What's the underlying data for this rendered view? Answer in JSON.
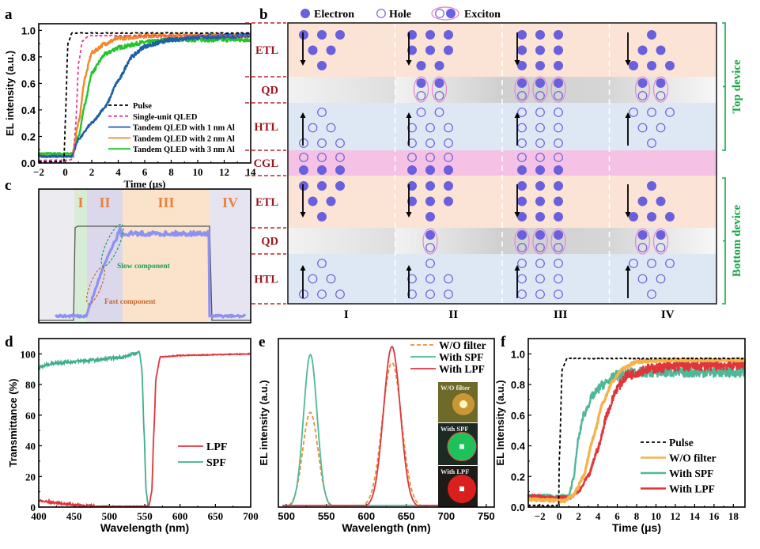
{
  "panels": {
    "a": {
      "letter": "a"
    },
    "b": {
      "letter": "b"
    },
    "c": {
      "letter": "c"
    },
    "d": {
      "letter": "d"
    },
    "e": {
      "letter": "e"
    },
    "f": {
      "letter": "f"
    }
  },
  "chart_data": [
    {
      "id": "a",
      "type": "line",
      "title": "",
      "xlabel": "Time (μs)",
      "ylabel": "EL intensity (a.u.)",
      "xlim": [
        -2,
        14
      ],
      "ylim": [
        0,
        1.05
      ],
      "xticks": [
        -2,
        0,
        2,
        4,
        6,
        8,
        10,
        12,
        14
      ],
      "xtick_labels": [
        "−2",
        "0",
        "2",
        "4",
        "6",
        "8",
        "10",
        "12",
        "14"
      ],
      "yticks": [
        0.0,
        0.2,
        0.4,
        0.6,
        0.8,
        1.0
      ],
      "ytick_labels": [
        "0.0",
        "0.2",
        "0.4",
        "0.6",
        "0.8",
        "1.0"
      ],
      "legend_position": "lower-right",
      "series": [
        {
          "name": "Pulse",
          "color": "#000000",
          "dash": true,
          "points": [
            [
              -2,
              0.01
            ],
            [
              -0.1,
              0.01
            ],
            [
              0.0,
              0.3
            ],
            [
              0.2,
              0.9
            ],
            [
              0.5,
              0.98
            ],
            [
              14,
              0.98
            ]
          ]
        },
        {
          "name": "Single-unit QLED",
          "color": "#e0409a",
          "dash": true,
          "points": [
            [
              -2,
              0.02
            ],
            [
              0.3,
              0.02
            ],
            [
              0.6,
              0.03
            ],
            [
              0.8,
              0.3
            ],
            [
              1.0,
              0.75
            ],
            [
              1.3,
              0.92
            ],
            [
              1.8,
              0.96
            ],
            [
              14,
              0.96
            ]
          ]
        },
        {
          "name": "Tandem QLED with 1 nm Al",
          "color": "#1f5fa8",
          "dash": false,
          "points": [
            [
              -2,
              0.05
            ],
            [
              0.5,
              0.05
            ],
            [
              1.0,
              0.18
            ],
            [
              2.0,
              0.3
            ],
            [
              3.0,
              0.42
            ],
            [
              4.0,
              0.62
            ],
            [
              5.0,
              0.8
            ],
            [
              6.0,
              0.88
            ],
            [
              8.0,
              0.93
            ],
            [
              10,
              0.95
            ],
            [
              14,
              0.96
            ]
          ]
        },
        {
          "name": "Tandem QLED with 2 nm Al",
          "color": "#f08a2c",
          "dash": false,
          "points": [
            [
              -2,
              0.05
            ],
            [
              0.5,
              0.05
            ],
            [
              1.0,
              0.3
            ],
            [
              1.5,
              0.65
            ],
            [
              2.0,
              0.83
            ],
            [
              3.0,
              0.9
            ],
            [
              4.0,
              0.94
            ],
            [
              6.0,
              0.96
            ],
            [
              14,
              0.96
            ]
          ]
        },
        {
          "name": "Tandem QLED with 3 nm Al",
          "color": "#22c42a",
          "dash": false,
          "points": [
            [
              -2,
              0.07
            ],
            [
              0.5,
              0.07
            ],
            [
              1.0,
              0.2
            ],
            [
              1.5,
              0.45
            ],
            [
              2.0,
              0.68
            ],
            [
              3.0,
              0.82
            ],
            [
              4.0,
              0.87
            ],
            [
              6.0,
              0.91
            ],
            [
              8.0,
              0.93
            ],
            [
              14,
              0.93
            ]
          ]
        }
      ]
    },
    {
      "id": "b",
      "type": "diagram",
      "legend": [
        {
          "name": "Electron",
          "symbol": "filled-circle",
          "color": "#6a5fdc"
        },
        {
          "name": "Hole",
          "symbol": "open-circle",
          "color": "#6a5fdc"
        },
        {
          "name": "Exciton",
          "symbol": "paired-circles",
          "color": "#e48cd6"
        }
      ],
      "layers": [
        "ETL",
        "QD",
        "HTL",
        "CGL",
        "ETL",
        "QD",
        "HTL"
      ],
      "layer_colors": {
        "ETL": "#fbe3d6",
        "QD": "#d9d9d9",
        "HTL": "#dde8f4",
        "CGL": "#f5c2e6"
      },
      "stages": [
        "I",
        "II",
        "III",
        "IV"
      ],
      "device_brackets": [
        "Top device",
        "Bottom device"
      ],
      "bracket_color": "#17a84a",
      "label_color": "#a0141e"
    },
    {
      "id": "c",
      "type": "line",
      "regions": [
        {
          "label": "I",
          "color": "#d7ecd5"
        },
        {
          "label": "II",
          "color": "#dcd8ec"
        },
        {
          "label": "III",
          "color": "#fbe3cb"
        },
        {
          "label": "IV",
          "color": "#e7e4f1"
        }
      ],
      "region_label_color": "#e8813a",
      "annotations": [
        {
          "text": "Slow component",
          "color": "#1f9a5a"
        },
        {
          "text": "Fast component",
          "color": "#c3682e"
        }
      ]
    },
    {
      "id": "d",
      "type": "line",
      "xlabel": "Wavelength (nm)",
      "ylabel": "Transmittance (%)",
      "xlim": [
        400,
        700
      ],
      "ylim": [
        0,
        110
      ],
      "xticks": [
        400,
        450,
        500,
        550,
        600,
        650,
        700
      ],
      "xtick_labels": [
        "400",
        "450",
        "500",
        "550",
        "600",
        "650",
        "700"
      ],
      "yticks": [
        0,
        20,
        40,
        60,
        80,
        100
      ],
      "ytick_labels": [
        "0",
        "20",
        "40",
        "60",
        "80",
        "100"
      ],
      "legend_position": "center-right",
      "series": [
        {
          "name": "LPF",
          "color": "#e0353b",
          "points": [
            [
              400,
              4
            ],
            [
              420,
              3
            ],
            [
              450,
              1.5
            ],
            [
              480,
              0.5
            ],
            [
              550,
              0.5
            ],
            [
              556,
              1
            ],
            [
              560,
              10
            ],
            [
              563,
              50
            ],
            [
              566,
              85
            ],
            [
              572,
              98
            ],
            [
              600,
              99
            ],
            [
              700,
              100
            ]
          ]
        },
        {
          "name": "SPF",
          "color": "#3fae8e",
          "points": [
            [
              400,
              91
            ],
            [
              420,
              94
            ],
            [
              450,
              95
            ],
            [
              480,
              96
            ],
            [
              520,
              98
            ],
            [
              543,
              101
            ],
            [
              546,
              90
            ],
            [
              549,
              50
            ],
            [
              552,
              10
            ],
            [
              555,
              1
            ]
          ]
        }
      ]
    },
    {
      "id": "e",
      "type": "line",
      "xlabel": "Wavelength (nm)",
      "ylabel": "EL intensity (a.u.)",
      "xlim": [
        490,
        760
      ],
      "ylim": [
        0,
        1.05
      ],
      "xticks": [
        500,
        550,
        600,
        650,
        700,
        750
      ],
      "xtick_labels": [
        "500",
        "550",
        "600",
        "650",
        "700",
        "750"
      ],
      "yticks": [],
      "legend_position": "top-right",
      "series": [
        {
          "name": "W/O filter",
          "color": "#e8913a",
          "dash": true,
          "peaks": [
            {
              "center": 530,
              "height": 0.59,
              "sigma": 9.5
            },
            {
              "center": 632,
              "height": 0.9,
              "sigma": 12
            }
          ]
        },
        {
          "name": "With SPF",
          "color": "#4fb898",
          "dash": false,
          "peaks": [
            {
              "center": 530,
              "height": 0.95,
              "sigma": 8.5
            }
          ]
        },
        {
          "name": "With LPF",
          "color": "#e0353b",
          "dash": false,
          "peaks": [
            {
              "center": 632,
              "height": 1.0,
              "sigma": 10.5
            }
          ]
        }
      ],
      "inset_labels": [
        "W/O filter",
        "With SPF",
        "With LPF"
      ]
    },
    {
      "id": "f",
      "type": "line",
      "xlabel": "Time (μs)",
      "ylabel": "EL Intensity (a.u.)",
      "xlim": [
        -3.2,
        19.2
      ],
      "ylim": [
        0,
        1.1
      ],
      "xticks": [
        -2,
        0,
        2,
        4,
        6,
        8,
        10,
        12,
        14,
        16,
        18
      ],
      "xtick_labels": [
        "−2",
        "0",
        "2",
        "4",
        "6",
        "8",
        "10",
        "12",
        "14",
        "16",
        "18"
      ],
      "yticks": [
        0.0,
        0.2,
        0.4,
        0.6,
        0.8,
        1.0
      ],
      "ytick_labels": [
        "0.0",
        "0.2",
        "0.4",
        "0.6",
        "0.8",
        "1.0"
      ],
      "legend_position": "lower-right",
      "series": [
        {
          "name": "Pulse",
          "color": "#000000",
          "dash": true,
          "points": [
            [
              -3.2,
              0.01
            ],
            [
              -0.05,
              0.01
            ],
            [
              0.0,
              0.3
            ],
            [
              0.3,
              0.9
            ],
            [
              0.8,
              0.97
            ],
            [
              19.2,
              0.97
            ]
          ]
        },
        {
          "name": "W/O filter",
          "color": "#f5b24a",
          "dash": false,
          "points": [
            [
              -3.2,
              0.05
            ],
            [
              0.5,
              0.04
            ],
            [
              1.5,
              0.08
            ],
            [
              2.5,
              0.2
            ],
            [
              3.5,
              0.45
            ],
            [
              4.5,
              0.68
            ],
            [
              5.5,
              0.82
            ],
            [
              6.5,
              0.9
            ],
            [
              8,
              0.95
            ],
            [
              12,
              0.96
            ],
            [
              19.2,
              0.96
            ]
          ]
        },
        {
          "name": "With SPF",
          "color": "#4fb898",
          "dash": false,
          "points": [
            [
              -3.2,
              0.07
            ],
            [
              1,
              0.07
            ],
            [
              1.5,
              0.2
            ],
            [
              2,
              0.45
            ],
            [
              2.5,
              0.6
            ],
            [
              3.5,
              0.73
            ],
            [
              4.5,
              0.8
            ],
            [
              6,
              0.86
            ],
            [
              8,
              0.88
            ],
            [
              19.2,
              0.88
            ]
          ]
        },
        {
          "name": "With LPF",
          "color": "#e0353b",
          "dash": false,
          "points": [
            [
              -3.2,
              0.07
            ],
            [
              1,
              0.06
            ],
            [
              2,
              0.1
            ],
            [
              3,
              0.2
            ],
            [
              4,
              0.38
            ],
            [
              5,
              0.62
            ],
            [
              6,
              0.78
            ],
            [
              7,
              0.86
            ],
            [
              9,
              0.9
            ],
            [
              12,
              0.92
            ],
            [
              19.2,
              0.93
            ]
          ]
        }
      ]
    }
  ]
}
